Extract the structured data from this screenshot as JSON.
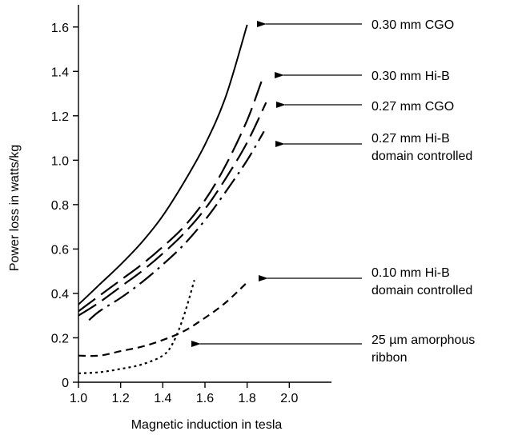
{
  "chart_data": {
    "type": "line",
    "title": "",
    "xlabel": "Magnetic induction in tesla",
    "ylabel": "Power loss in watts/kg",
    "xlim": [
      1.0,
      2.2
    ],
    "ylim": [
      0,
      1.7
    ],
    "x_ticks": [
      1.0,
      1.2,
      1.4,
      1.6,
      1.8,
      2.0
    ],
    "x_tick_labels": [
      "1.0",
      "1.2",
      "1.4",
      "1.6",
      "1.8",
      "2.0"
    ],
    "y_ticks": [
      0,
      0.2,
      0.4,
      0.6,
      0.8,
      1.0,
      1.2,
      1.4,
      1.6
    ],
    "y_tick_labels": [
      "0",
      "0.2",
      "0.4",
      "0.6",
      "0.8",
      "1.0",
      "1.2",
      "1.4",
      "1.6"
    ],
    "grid": false,
    "legend": "right, annotated with arrows",
    "series": [
      {
        "name": "0.30 mm CGO",
        "label_lines": [
          "0.30 mm CGO"
        ],
        "style": "solid",
        "x": [
          1.0,
          1.1,
          1.2,
          1.3,
          1.4,
          1.5,
          1.6,
          1.7,
          1.8
        ],
        "y": [
          0.35,
          0.44,
          0.53,
          0.63,
          0.75,
          0.9,
          1.07,
          1.29,
          1.61
        ]
      },
      {
        "name": "0.30 mm Hi-B",
        "label_lines": [
          "0.30 mm Hi-B"
        ],
        "style": "long-dash",
        "x": [
          1.0,
          1.1,
          1.2,
          1.3,
          1.4,
          1.5,
          1.6,
          1.7,
          1.8,
          1.87
        ],
        "y": [
          0.32,
          0.39,
          0.46,
          0.53,
          0.61,
          0.7,
          0.82,
          0.98,
          1.18,
          1.36
        ]
      },
      {
        "name": "0.27 mm CGO",
        "label_lines": [
          "0.27 mm CGO"
        ],
        "style": "long-dash",
        "x": [
          1.0,
          1.1,
          1.2,
          1.3,
          1.4,
          1.5,
          1.6,
          1.7,
          1.8,
          1.89
        ],
        "y": [
          0.3,
          0.36,
          0.43,
          0.5,
          0.58,
          0.67,
          0.78,
          0.92,
          1.08,
          1.26
        ]
      },
      {
        "name": "0.27 mm Hi-B domain controlled",
        "label_lines": [
          "0.27 mm Hi-B",
          "domain controlled"
        ],
        "style": "dash-dot",
        "x": [
          1.05,
          1.1,
          1.2,
          1.3,
          1.4,
          1.5,
          1.6,
          1.7,
          1.8,
          1.88
        ],
        "y": [
          0.28,
          0.32,
          0.38,
          0.45,
          0.53,
          0.62,
          0.73,
          0.86,
          1.0,
          1.13
        ]
      },
      {
        "name": "0.10 mm Hi-B domain controlled",
        "label_lines": [
          "0.10 mm Hi-B",
          "domain controlled"
        ],
        "style": "medium-dash",
        "x": [
          1.0,
          1.1,
          1.2,
          1.3,
          1.4,
          1.5,
          1.6,
          1.7,
          1.8
        ],
        "y": [
          0.12,
          0.12,
          0.14,
          0.16,
          0.19,
          0.23,
          0.29,
          0.36,
          0.45
        ]
      },
      {
        "name": "25 µm amorphous ribbon",
        "label_lines": [
          "25 µm amorphous",
          "ribbon"
        ],
        "style": "dotted",
        "x": [
          1.0,
          1.1,
          1.2,
          1.3,
          1.4,
          1.45,
          1.5,
          1.55
        ],
        "y": [
          0.04,
          0.045,
          0.06,
          0.08,
          0.12,
          0.18,
          0.3,
          0.46
        ]
      }
    ]
  }
}
